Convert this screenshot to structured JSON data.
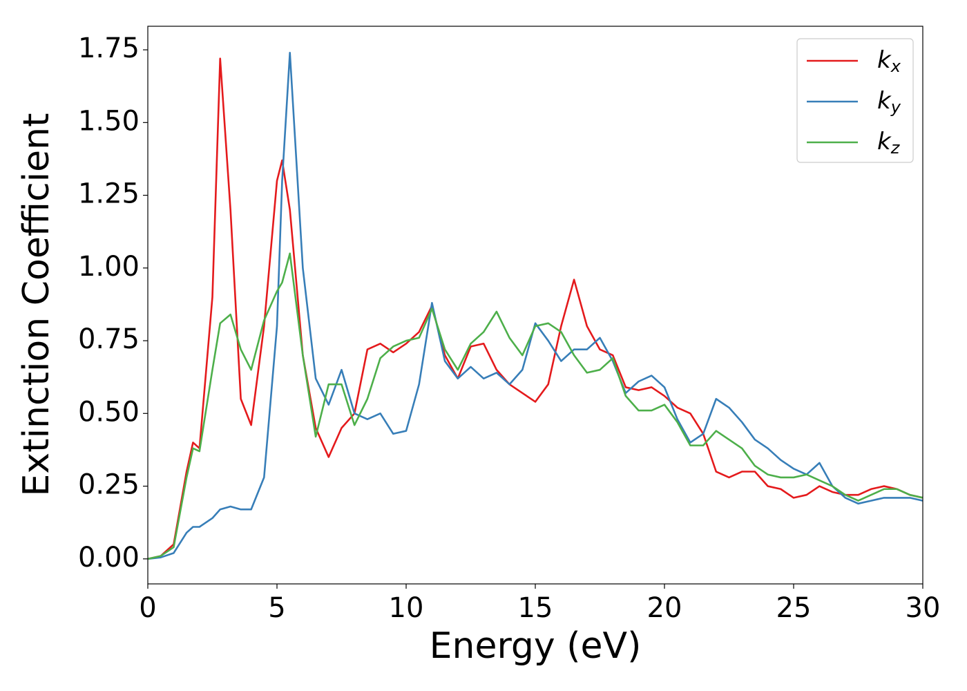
{
  "chart_data": {
    "type": "line",
    "xlabel": "Energy (eV)",
    "ylabel": "Extinction Coefficient",
    "x": [
      0,
      0.5,
      1,
      1.5,
      1.75,
      2,
      2.5,
      2.8,
      3.2,
      3.6,
      4,
      4.5,
      5,
      5.2,
      5.5,
      6,
      6.5,
      7,
      7.5,
      8,
      8.5,
      9,
      9.5,
      10,
      10.5,
      11,
      11.5,
      12,
      12.5,
      13,
      13.5,
      14,
      14.5,
      15,
      15.5,
      16,
      16.5,
      17,
      17.5,
      18,
      18.5,
      19,
      19.5,
      20,
      20.5,
      21,
      21.5,
      22,
      22.5,
      23,
      23.5,
      24,
      24.5,
      25,
      25.5,
      26,
      26.5,
      27,
      27.5,
      28,
      28.5,
      29,
      29.5,
      30
    ],
    "series": [
      {
        "name": "kx",
        "color": "#e41a1c",
        "values": [
          0,
          0.01,
          0.05,
          0.3,
          0.4,
          0.38,
          0.9,
          1.72,
          1.2,
          0.55,
          0.46,
          0.8,
          1.3,
          1.37,
          1.2,
          0.7,
          0.45,
          0.35,
          0.45,
          0.5,
          0.72,
          0.74,
          0.71,
          0.74,
          0.78,
          0.87,
          0.7,
          0.62,
          0.73,
          0.74,
          0.65,
          0.6,
          0.57,
          0.54,
          0.6,
          0.8,
          0.96,
          0.8,
          0.72,
          0.7,
          0.59,
          0.58,
          0.59,
          0.56,
          0.52,
          0.5,
          0.43,
          0.3,
          0.28,
          0.3,
          0.3,
          0.25,
          0.24,
          0.21,
          0.22,
          0.25,
          0.23,
          0.22,
          0.22,
          0.24,
          0.25,
          0.24,
          0.22,
          0.21
        ]
      },
      {
        "name": "ky",
        "color": "#377eb8",
        "values": [
          0,
          0.005,
          0.02,
          0.09,
          0.11,
          0.11,
          0.14,
          0.17,
          0.18,
          0.17,
          0.17,
          0.28,
          0.8,
          1.3,
          1.74,
          1.0,
          0.62,
          0.53,
          0.65,
          0.5,
          0.48,
          0.5,
          0.43,
          0.44,
          0.6,
          0.88,
          0.68,
          0.62,
          0.66,
          0.62,
          0.64,
          0.6,
          0.65,
          0.81,
          0.75,
          0.68,
          0.72,
          0.72,
          0.76,
          0.68,
          0.57,
          0.61,
          0.63,
          0.59,
          0.48,
          0.4,
          0.43,
          0.55,
          0.52,
          0.47,
          0.41,
          0.38,
          0.34,
          0.31,
          0.29,
          0.33,
          0.25,
          0.21,
          0.19,
          0.2,
          0.21,
          0.21,
          0.21,
          0.2
        ]
      },
      {
        "name": "kz",
        "color": "#4daf4a",
        "values": [
          0,
          0.01,
          0.04,
          0.28,
          0.38,
          0.37,
          0.65,
          0.81,
          0.84,
          0.72,
          0.65,
          0.82,
          0.92,
          0.95,
          1.05,
          0.7,
          0.42,
          0.6,
          0.6,
          0.46,
          0.55,
          0.69,
          0.73,
          0.75,
          0.76,
          0.86,
          0.72,
          0.65,
          0.74,
          0.78,
          0.85,
          0.76,
          0.7,
          0.8,
          0.81,
          0.78,
          0.7,
          0.64,
          0.65,
          0.69,
          0.56,
          0.51,
          0.51,
          0.53,
          0.47,
          0.39,
          0.39,
          0.44,
          0.41,
          0.38,
          0.32,
          0.29,
          0.28,
          0.28,
          0.29,
          0.27,
          0.25,
          0.22,
          0.2,
          0.22,
          0.24,
          0.24,
          0.22,
          0.21
        ]
      }
    ],
    "xlim": [
      0,
      30
    ],
    "ylim": [
      -0.086,
      1.831
    ],
    "xticks": [
      0,
      5,
      10,
      15,
      20,
      25,
      30
    ],
    "yticks": [
      {
        "value": 0,
        "label": "0.00"
      },
      {
        "value": 0.25,
        "label": "0.25"
      },
      {
        "value": 0.5,
        "label": "0.50"
      },
      {
        "value": 0.75,
        "label": "0.75"
      },
      {
        "value": 1,
        "label": "1.00"
      },
      {
        "value": 1.25,
        "label": "1.25"
      },
      {
        "value": 1.5,
        "label": "1.50"
      },
      {
        "value": 1.75,
        "label": "1.75"
      }
    ],
    "legend": "upper right",
    "grid": false
  }
}
